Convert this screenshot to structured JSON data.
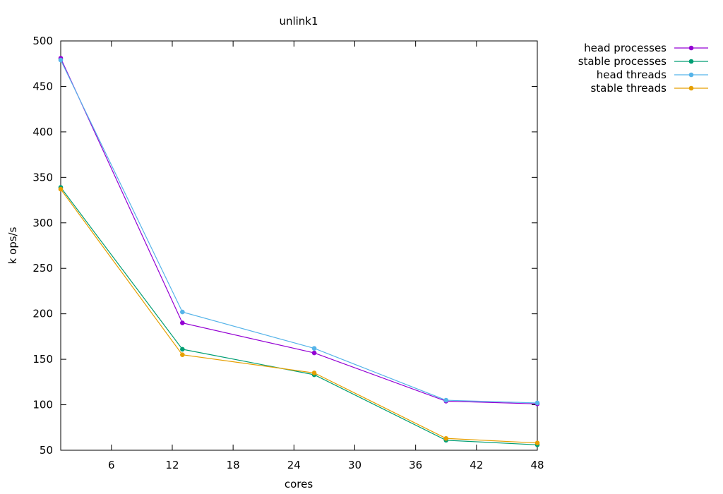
{
  "chart_data": {
    "type": "line",
    "title": "unlink1",
    "xlabel": "cores",
    "ylabel": "k ops/s",
    "xlim": [
      1,
      48
    ],
    "ylim": [
      50,
      500
    ],
    "xticks": [
      6,
      12,
      18,
      24,
      30,
      36,
      42,
      48
    ],
    "yticks": [
      50,
      100,
      150,
      200,
      250,
      300,
      350,
      400,
      450,
      500
    ],
    "x": [
      1,
      13,
      26,
      39,
      48
    ],
    "grid": false,
    "legend_position": "top-right, outside plot",
    "series": [
      {
        "name": "head processes",
        "color": "#9400d3",
        "values": [
          481,
          190,
          157,
          104,
          101
        ]
      },
      {
        "name": "stable processes",
        "color": "#009e73",
        "values": [
          339,
          161,
          133,
          61,
          56
        ]
      },
      {
        "name": "head threads",
        "color": "#56b4e9",
        "values": [
          479,
          202,
          162,
          105,
          102
        ]
      },
      {
        "name": "stable threads",
        "color": "#e69f00",
        "values": [
          337,
          155,
          135,
          63,
          58
        ]
      }
    ]
  }
}
